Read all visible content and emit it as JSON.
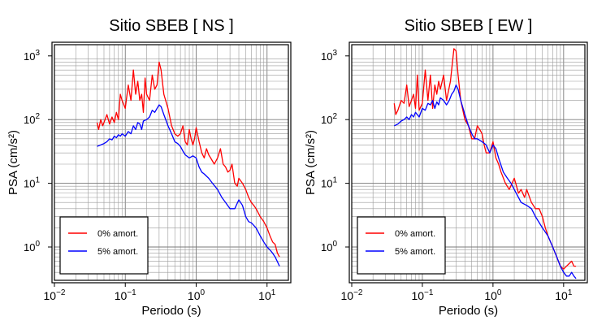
{
  "chart_data": [
    {
      "type": "line",
      "title": "Sitio SBEB [ NS ]",
      "xlabel": "Periodo (s)",
      "ylabel": "PSA (cm/s²)",
      "xscale": "log",
      "yscale": "log",
      "xlim": [
        0.01,
        20
      ],
      "ylim": [
        0.3,
        1500
      ],
      "x_ticks": [
        {
          "value": 0.01,
          "base": "10",
          "exp": "−2"
        },
        {
          "value": 0.1,
          "base": "10",
          "exp": "−1"
        },
        {
          "value": 1,
          "base": "10",
          "exp": "0"
        },
        {
          "value": 10,
          "base": "10",
          "exp": "1"
        }
      ],
      "y_ticks": [
        {
          "value": 1,
          "base": "10",
          "exp": "0"
        },
        {
          "value": 10,
          "base": "10",
          "exp": "1"
        },
        {
          "value": 100,
          "base": "10",
          "exp": "2"
        },
        {
          "value": 1000,
          "base": "10",
          "exp": "3"
        }
      ],
      "grid": true,
      "legend_position": "bottom-left",
      "series": [
        {
          "name": "0% amort.",
          "color": "#ff0000",
          "x": [
            0.04,
            0.042,
            0.045,
            0.048,
            0.05,
            0.055,
            0.06,
            0.065,
            0.07,
            0.075,
            0.08,
            0.085,
            0.09,
            0.1,
            0.11,
            0.12,
            0.13,
            0.14,
            0.15,
            0.16,
            0.17,
            0.18,
            0.19,
            0.2,
            0.22,
            0.24,
            0.26,
            0.28,
            0.3,
            0.32,
            0.35,
            0.4,
            0.45,
            0.5,
            0.55,
            0.6,
            0.65,
            0.7,
            0.75,
            0.8,
            0.85,
            0.9,
            0.95,
            1.0,
            1.1,
            1.2,
            1.3,
            1.4,
            1.5,
            1.6,
            1.8,
            2.0,
            2.2,
            2.4,
            2.6,
            2.8,
            3.0,
            3.2,
            3.5,
            3.8,
            4.0,
            4.5,
            5.0,
            5.5,
            6.0,
            6.5,
            7.0,
            8.0,
            9.0,
            10.0,
            11.0,
            12.0,
            13.0,
            14.0,
            15.0
          ],
          "y": [
            90,
            70,
            100,
            80,
            90,
            120,
            85,
            110,
            90,
            130,
            100,
            250,
            200,
            150,
            350,
            200,
            600,
            250,
            400,
            200,
            250,
            130,
            450,
            250,
            200,
            500,
            300,
            350,
            800,
            600,
            250,
            150,
            80,
            60,
            55,
            60,
            80,
            45,
            40,
            70,
            50,
            40,
            50,
            75,
            45,
            30,
            25,
            35,
            28,
            25,
            20,
            25,
            35,
            20,
            18,
            15,
            16,
            20,
            10,
            9,
            12,
            10,
            8,
            6,
            5,
            4.5,
            4,
            3,
            2.5,
            2,
            1.5,
            1.2,
            1.1,
            0.8,
            0.7
          ]
        },
        {
          "name": "5% amort.",
          "color": "#0000ff",
          "x": [
            0.04,
            0.045,
            0.05,
            0.055,
            0.06,
            0.065,
            0.07,
            0.075,
            0.08,
            0.085,
            0.09,
            0.1,
            0.11,
            0.12,
            0.13,
            0.14,
            0.15,
            0.16,
            0.17,
            0.18,
            0.2,
            0.22,
            0.24,
            0.26,
            0.28,
            0.3,
            0.32,
            0.35,
            0.4,
            0.45,
            0.5,
            0.55,
            0.6,
            0.65,
            0.7,
            0.8,
            0.9,
            1.0,
            1.1,
            1.2,
            1.3,
            1.5,
            1.7,
            2.0,
            2.3,
            2.6,
            3.0,
            3.5,
            4.0,
            4.5,
            5.0,
            5.5,
            6.0,
            7.0,
            8.0,
            9.0,
            10.0,
            11.0,
            12.0,
            13.0,
            15.0
          ],
          "y": [
            38,
            40,
            42,
            45,
            50,
            48,
            55,
            52,
            58,
            55,
            60,
            55,
            65,
            60,
            80,
            70,
            90,
            85,
            70,
            95,
            100,
            110,
            140,
            130,
            150,
            170,
            160,
            120,
            80,
            60,
            45,
            42,
            38,
            32,
            28,
            25,
            27,
            25,
            18,
            15,
            14,
            12,
            10,
            8,
            6,
            5,
            4,
            4,
            5.5,
            4.5,
            3,
            2.5,
            2.4,
            2,
            1.5,
            1.2,
            1,
            0.9,
            0.8,
            0.7,
            0.5
          ]
        }
      ]
    },
    {
      "type": "line",
      "title": "Sitio SBEB [ EW ]",
      "xlabel": "Periodo (s)",
      "ylabel": "PSA (cm/s²)",
      "xscale": "log",
      "yscale": "log",
      "xlim": [
        0.01,
        20
      ],
      "ylim": [
        0.3,
        1500
      ],
      "x_ticks": [
        {
          "value": 0.01,
          "base": "10",
          "exp": "−2"
        },
        {
          "value": 0.1,
          "base": "10",
          "exp": "−1"
        },
        {
          "value": 1,
          "base": "10",
          "exp": "0"
        },
        {
          "value": 10,
          "base": "10",
          "exp": "1"
        }
      ],
      "y_ticks": [
        {
          "value": 1,
          "base": "10",
          "exp": "0"
        },
        {
          "value": 10,
          "base": "10",
          "exp": "1"
        },
        {
          "value": 100,
          "base": "10",
          "exp": "2"
        },
        {
          "value": 1000,
          "base": "10",
          "exp": "3"
        }
      ],
      "grid": true,
      "legend_position": "bottom-left",
      "series": [
        {
          "name": "0% amort.",
          "color": "#ff0000",
          "x": [
            0.04,
            0.042,
            0.045,
            0.05,
            0.055,
            0.06,
            0.065,
            0.07,
            0.075,
            0.08,
            0.085,
            0.09,
            0.1,
            0.11,
            0.12,
            0.13,
            0.14,
            0.15,
            0.16,
            0.17,
            0.18,
            0.2,
            0.22,
            0.25,
            0.28,
            0.3,
            0.32,
            0.35,
            0.4,
            0.45,
            0.5,
            0.55,
            0.6,
            0.65,
            0.7,
            0.75,
            0.8,
            0.9,
            1.0,
            1.1,
            1.2,
            1.3,
            1.5,
            1.7,
            2.0,
            2.3,
            2.5,
            2.8,
            3.0,
            3.5,
            4.0,
            4.5,
            5.0,
            5.5,
            6.0,
            7.0,
            8.0,
            9.0,
            10.0,
            11.0,
            12.0,
            13.0,
            14.0,
            15.0
          ],
          "y": [
            180,
            120,
            140,
            200,
            180,
            350,
            160,
            200,
            250,
            150,
            500,
            140,
            180,
            600,
            200,
            500,
            150,
            350,
            250,
            400,
            300,
            500,
            200,
            400,
            1300,
            1200,
            500,
            200,
            100,
            80,
            50,
            50,
            80,
            70,
            60,
            40,
            30,
            30,
            45,
            25,
            20,
            15,
            10,
            8,
            12,
            7,
            8,
            6,
            8,
            5,
            4,
            4,
            3,
            2,
            1.5,
            1,
            0.7,
            0.5,
            0.45,
            0.5,
            0.55,
            0.6,
            0.5,
            0.5
          ]
        },
        {
          "name": "5% amort.",
          "color": "#0000ff",
          "x": [
            0.04,
            0.045,
            0.05,
            0.055,
            0.06,
            0.065,
            0.07,
            0.075,
            0.08,
            0.09,
            0.1,
            0.11,
            0.12,
            0.13,
            0.14,
            0.15,
            0.16,
            0.17,
            0.18,
            0.2,
            0.22,
            0.24,
            0.26,
            0.28,
            0.3,
            0.32,
            0.35,
            0.4,
            0.45,
            0.5,
            0.55,
            0.6,
            0.7,
            0.8,
            0.9,
            1.0,
            1.1,
            1.2,
            1.4,
            1.6,
            1.8,
            2.0,
            2.5,
            3.0,
            3.5,
            4.0,
            5.0,
            6.0,
            7.0,
            8.0,
            9.0,
            10.0,
            11.0,
            12.0,
            13.0,
            14.0,
            15.0
          ],
          "y": [
            80,
            85,
            95,
            100,
            110,
            100,
            120,
            110,
            130,
            110,
            150,
            140,
            180,
            170,
            200,
            150,
            190,
            170,
            220,
            200,
            170,
            200,
            250,
            280,
            350,
            300,
            200,
            120,
            80,
            60,
            50,
            50,
            45,
            40,
            30,
            40,
            35,
            25,
            15,
            12,
            10,
            8,
            5,
            4.5,
            4,
            3,
            2,
            1.5,
            1,
            0.7,
            0.5,
            0.4,
            0.35,
            0.35,
            0.4,
            0.35,
            0.32
          ]
        }
      ]
    }
  ]
}
